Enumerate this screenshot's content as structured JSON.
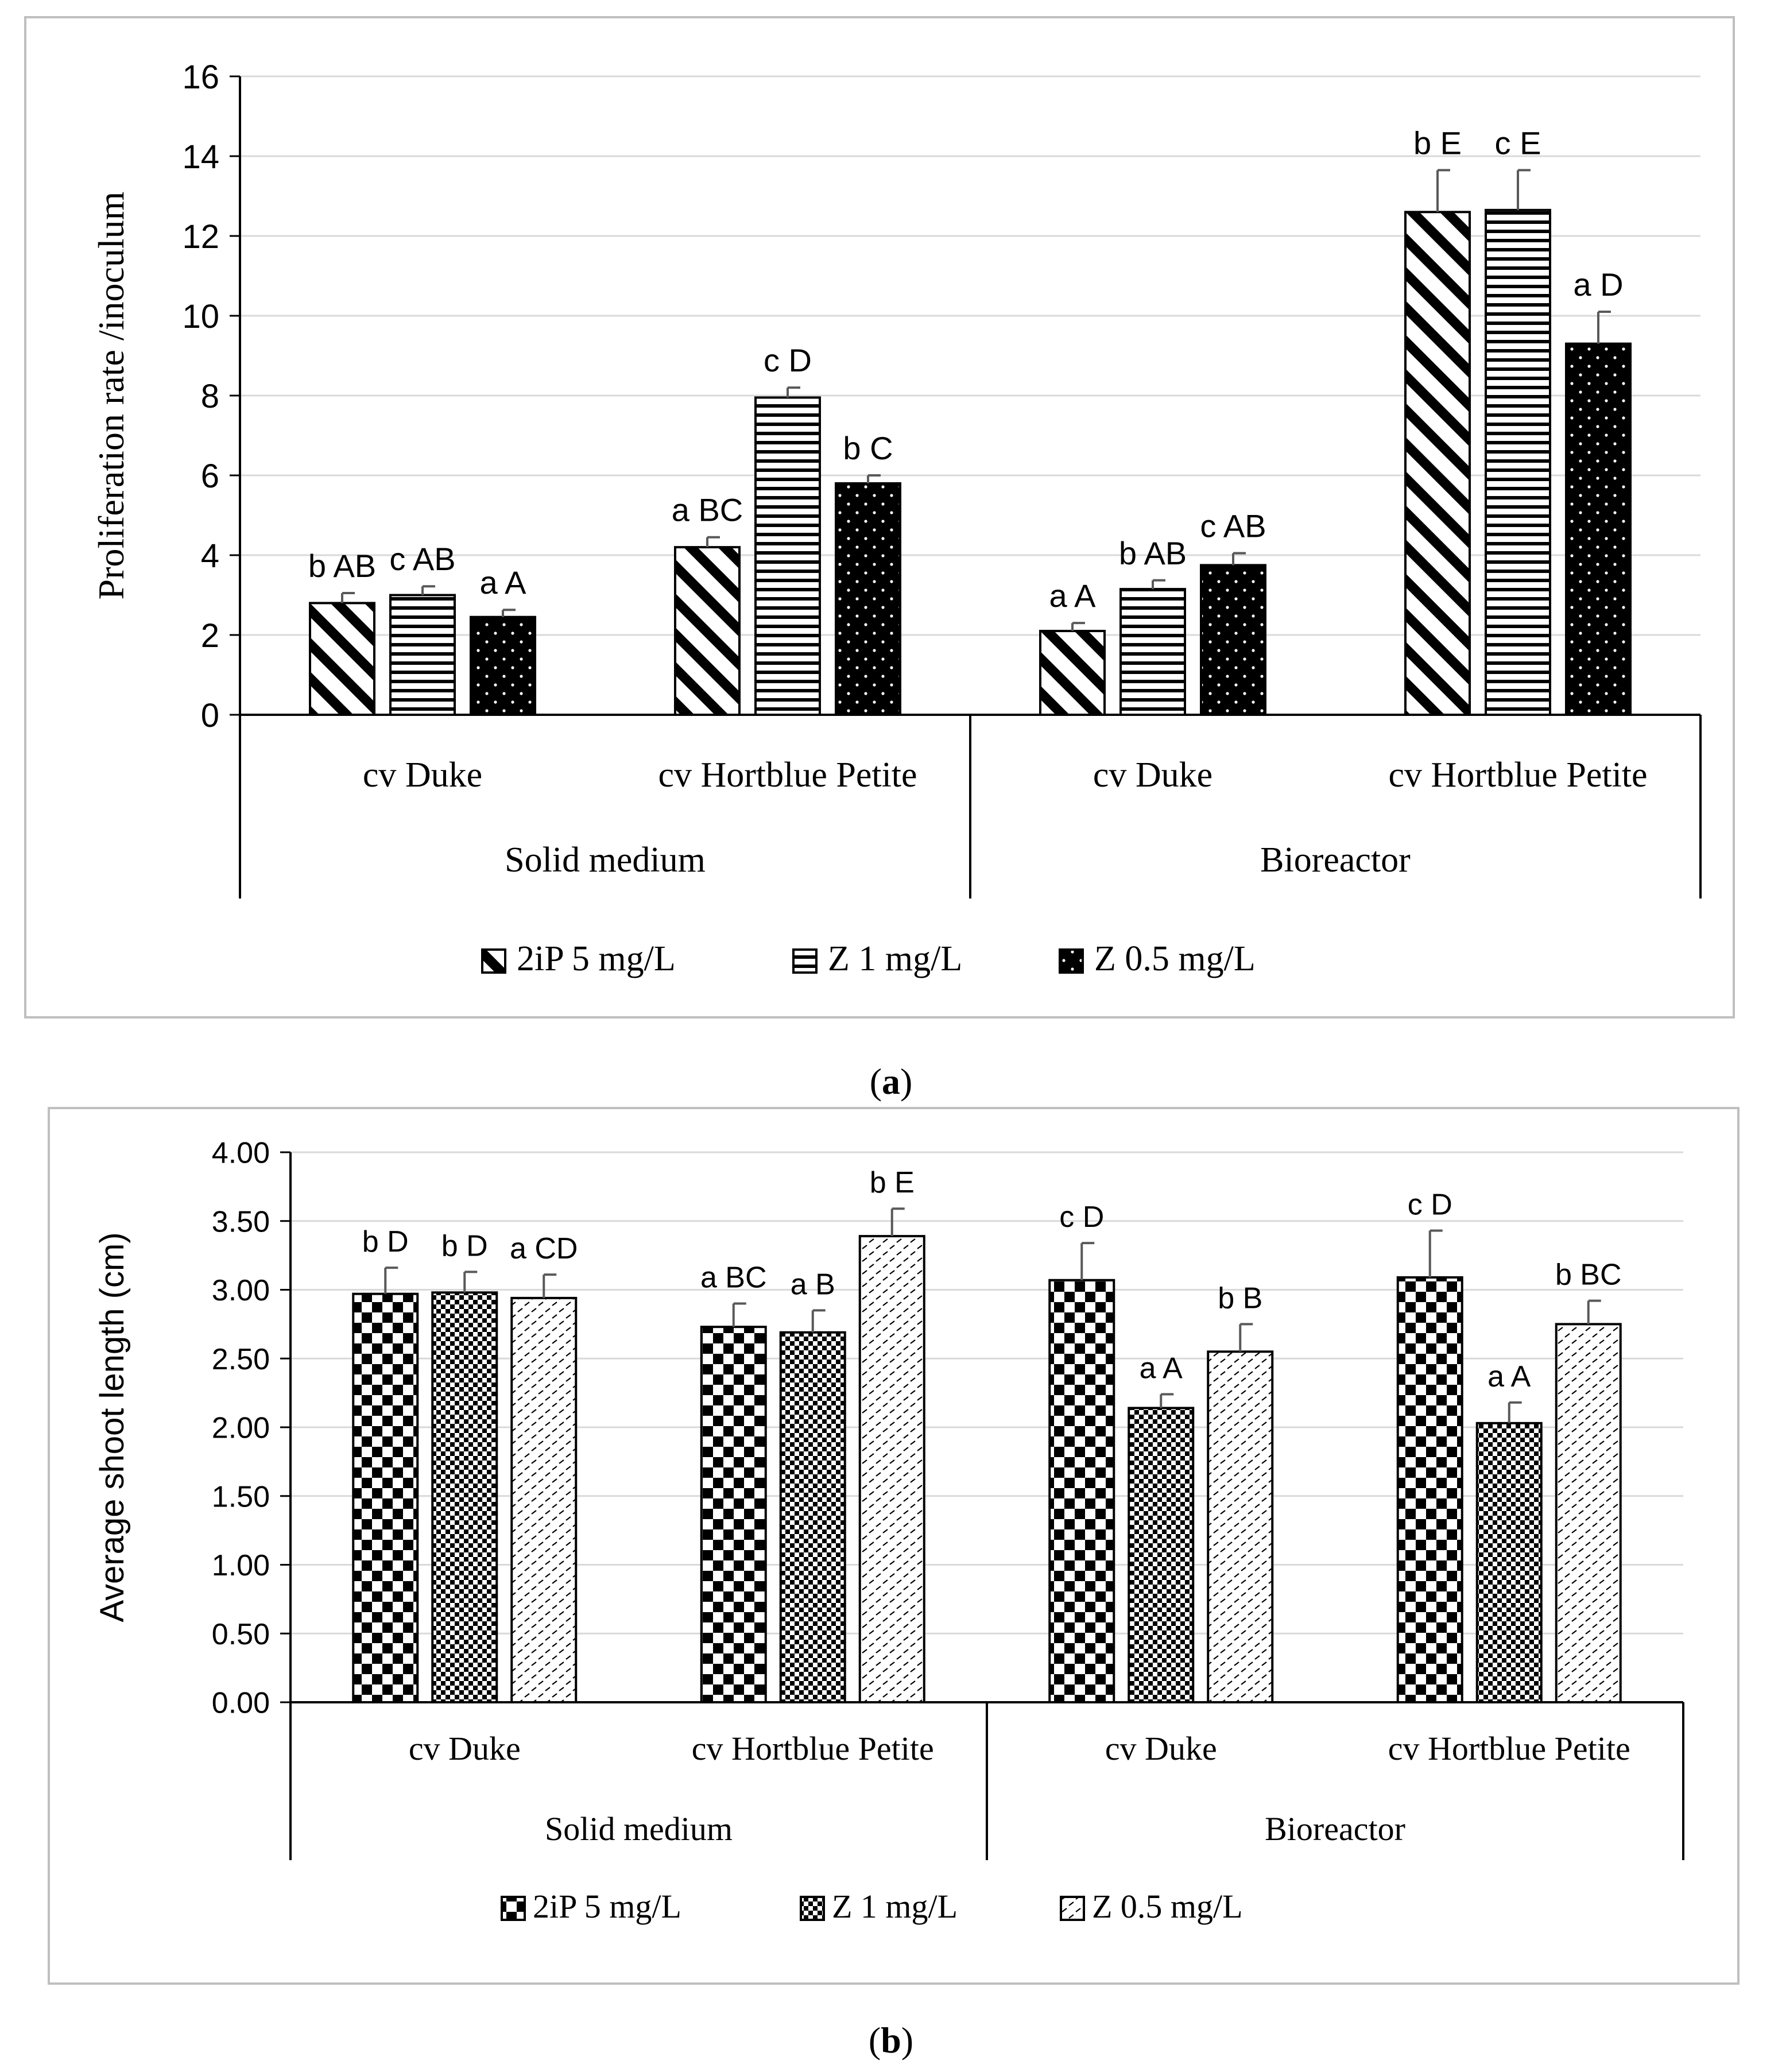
{
  "colors": {
    "ink": "#000000",
    "grid": "#d9d9d9",
    "frame": "#bfbfbf",
    "error": "#595959",
    "bg": "#ffffff"
  },
  "chart_data": [
    {
      "type": "bar",
      "panel_label": "a",
      "ylabel": "Proliferation  rate /inoculum",
      "ylim": [
        0,
        16
      ],
      "yticks": [
        0,
        2,
        4,
        6,
        8,
        10,
        12,
        14,
        16
      ],
      "ytick_decimals": 0,
      "grid": true,
      "legend_position": "bottom",
      "groups": [
        {
          "name": "Solid medium",
          "categories": [
            "cv Duke",
            "cv Hortblue Petite"
          ]
        },
        {
          "name": "Bioreactor",
          "categories": [
            "cv Duke",
            "cv Hortblue Petite"
          ]
        }
      ],
      "series": [
        {
          "name": "2iP 5 mg/L",
          "pattern": "diagonal",
          "values": [
            2.8,
            4.2,
            2.1,
            12.6
          ],
          "errors": [
            0.25,
            0.25,
            0.2,
            1.05
          ],
          "labels": [
            "b AB",
            "a BC",
            "a A",
            "b E"
          ]
        },
        {
          "name": "Z 1 mg/L",
          "pattern": "horizontal",
          "values": [
            3.0,
            7.95,
            3.15,
            12.65
          ],
          "errors": [
            0.22,
            0.25,
            0.22,
            1.0
          ],
          "labels": [
            "c AB",
            "c D",
            "b AB",
            "c E"
          ]
        },
        {
          "name": "Z 0.5 mg/L",
          "pattern": "dots",
          "values": [
            2.45,
            5.8,
            3.75,
            9.3
          ],
          "errors": [
            0.18,
            0.2,
            0.3,
            0.8
          ],
          "labels": [
            "a A",
            "b C",
            "c AB",
            "a D"
          ]
        }
      ]
    },
    {
      "type": "bar",
      "panel_label": "b",
      "ylabel": "Average shoot length (cm)",
      "ylim": [
        0,
        4
      ],
      "yticks": [
        0,
        0.5,
        1,
        1.5,
        2,
        2.5,
        3,
        3.5,
        4
      ],
      "ytick_decimals": 2,
      "grid": true,
      "legend_position": "bottom",
      "groups": [
        {
          "name": "Solid medium",
          "categories": [
            "cv Duke",
            "cv Hortblue Petite"
          ]
        },
        {
          "name": "Bioreactor",
          "categories": [
            "cv Duke",
            "cv Hortblue Petite"
          ]
        }
      ],
      "series": [
        {
          "name": "2iP 5 mg/L",
          "pattern": "checker",
          "values": [
            2.97,
            2.73,
            3.07,
            3.09
          ],
          "errors": [
            0.19,
            0.17,
            0.27,
            0.34
          ],
          "labels": [
            "b D",
            "a BC",
            "c D",
            "c D"
          ]
        },
        {
          "name": "Z 1 mg/L",
          "pattern": "smallchecker",
          "values": [
            2.98,
            2.69,
            2.14,
            2.03
          ],
          "errors": [
            0.15,
            0.16,
            0.1,
            0.15
          ],
          "labels": [
            "b D",
            "a B",
            "a A",
            "a A"
          ]
        },
        {
          "name": "Z 0.5 mg/L",
          "pattern": "dashes",
          "values": [
            2.94,
            3.39,
            2.55,
            2.75
          ],
          "errors": [
            0.17,
            0.2,
            0.2,
            0.17
          ],
          "labels": [
            "a CD",
            "b E",
            "b B",
            "b BC"
          ]
        }
      ]
    }
  ]
}
